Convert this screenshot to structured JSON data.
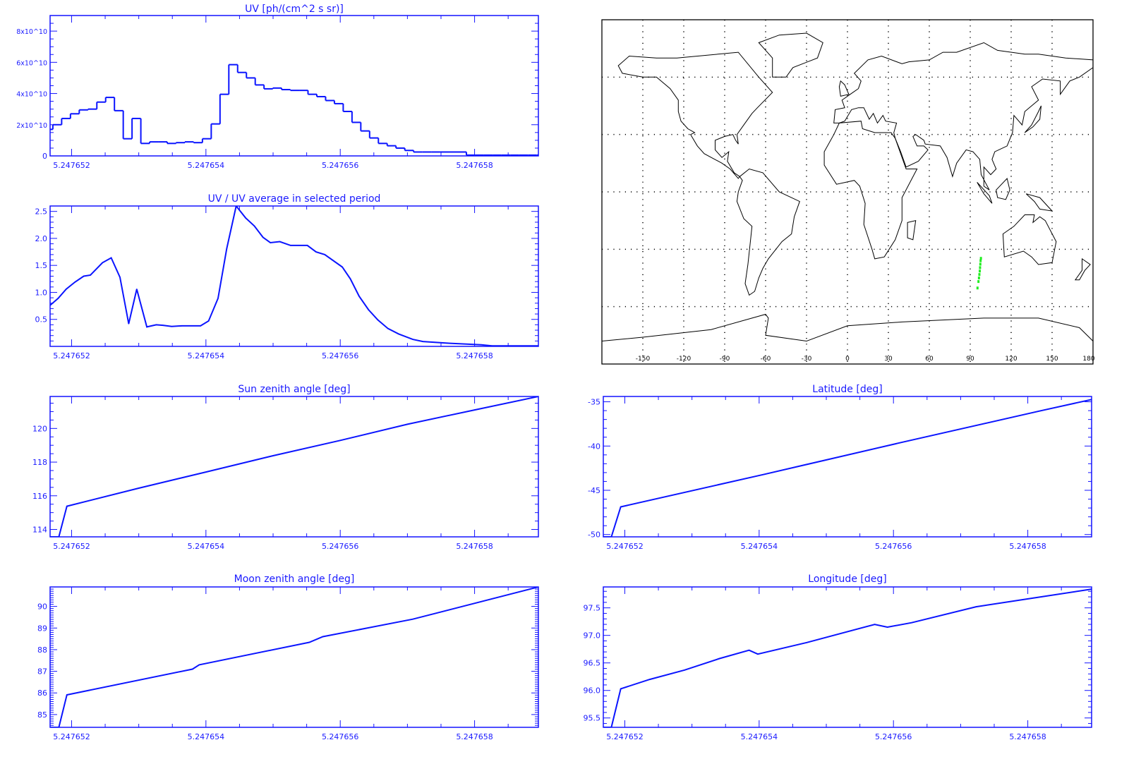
{
  "colors": {
    "axis": "#1414ff",
    "line": "#0a14ff",
    "track": "#22ee22",
    "coast": "#000000"
  },
  "chart_data": [
    {
      "key": "uv",
      "type": "bar",
      "style": "step",
      "title": "UV [ph/(cm^2 s sr)]",
      "xlim": [
        5.24765168,
        5.24765895
      ],
      "ylim": [
        0,
        90000000000.0
      ],
      "xticks": [
        5.247652,
        5.247654,
        5.247656,
        5.247658
      ],
      "xtick_labels": [
        "5.247652",
        "5.247654",
        "5.247656",
        "5.247658"
      ],
      "x_minor": 5e-07,
      "yticks": [
        0,
        20000000000.0,
        40000000000.0,
        60000000000.0,
        80000000000.0
      ],
      "ytick_labels": [
        "0",
        "2x10^10",
        "4x10^10",
        "6x10^10",
        "8x10^10"
      ],
      "y_minor": 5000000000.0,
      "bin_start": 5.24765159,
      "bin_width": 1.31e-07,
      "values": [
        17000000000.0,
        20000000000.0,
        24000000000.0,
        27000000000.0,
        29500000000.0,
        30000000000.0,
        34500000000.0,
        37500000000.0,
        29000000000.0,
        11000000000.0,
        24000000000.0,
        8000000000.0,
        9000000000.0,
        9000000000.0,
        8000000000.0,
        8500000000.0,
        9000000000.0,
        8500000000.0,
        11000000000.0,
        20500000000.0,
        39500000000.0,
        58500000000.0,
        53500000000.0,
        50000000000.0,
        45500000000.0,
        43000000000.0,
        43500000000.0,
        42500000000.0,
        42000000000.0,
        42000000000.0,
        39500000000.0,
        38000000000.0,
        35500000000.0,
        33500000000.0,
        28500000000.0,
        21500000000.0,
        16000000000.0,
        11500000000.0,
        8000000000.0,
        6500000000.0,
        5000000000.0,
        3500000000.0,
        2500000000.0,
        2500000000.0,
        2500000000.0,
        2500000000.0,
        2500000000.0,
        2500000000.0,
        500000000.0,
        500000000.0,
        500000000.0,
        500000000.0,
        500000000.0,
        500000000.0,
        500000000.0,
        500000000.0,
        500000000.0
      ]
    },
    {
      "key": "ratio",
      "type": "line",
      "title": "UV / UV average in selected period",
      "xlim": [
        5.24765168,
        5.24765895
      ],
      "ylim": [
        0,
        2.6
      ],
      "xticks": [
        5.247652,
        5.247654,
        5.247656,
        5.247658
      ],
      "xtick_labels": [
        "5.247652",
        "5.247654",
        "5.247656",
        "5.247658"
      ],
      "x_minor": 5e-07,
      "yticks": [
        0.5,
        1.0,
        1.5,
        2.0,
        2.5
      ],
      "ytick_labels": [
        "0.5",
        "1.0",
        "1.5",
        "2.0",
        "2.5"
      ],
      "y_minor": 0.1,
      "x": [
        5.24765168,
        5.2476518,
        5.24765192,
        5.24765205,
        5.24765218,
        5.24765228,
        5.24765246,
        5.24765259,
        5.24765272,
        5.24765285,
        5.24765297,
        5.24765312,
        5.24765326,
        5.24765336,
        5.24765349,
        5.24765364,
        5.24765392,
        5.24765404,
        5.24765418,
        5.24765431,
        5.24765445,
        5.24765459,
        5.24765472,
        5.24765485,
        5.24765496,
        5.2476551,
        5.24765526,
        5.24765551,
        5.24765564,
        5.24765577,
        5.24765603,
        5.24765615,
        5.24765628,
        5.24765642,
        5.24765656,
        5.24765671,
        5.24765687,
        5.24765708,
        5.24765723,
        5.24765759,
        5.2476581,
        5.24765826,
        5.24765895
      ],
      "y": [
        0.76,
        0.89,
        1.06,
        1.19,
        1.3,
        1.32,
        1.55,
        1.64,
        1.28,
        0.42,
        1.06,
        0.36,
        0.4,
        0.39,
        0.37,
        0.38,
        0.38,
        0.47,
        0.89,
        1.81,
        2.6,
        2.38,
        2.23,
        2.02,
        1.92,
        1.94,
        1.87,
        1.87,
        1.75,
        1.7,
        1.47,
        1.25,
        0.93,
        0.68,
        0.49,
        0.33,
        0.23,
        0.13,
        0.09,
        0.06,
        0.03,
        0.01,
        0.01
      ]
    },
    {
      "key": "sun",
      "type": "line",
      "title": "Sun zenith angle [deg]",
      "xlim": [
        5.24765168,
        5.24765895
      ],
      "ylim": [
        113.56,
        121.9
      ],
      "xticks": [
        5.247652,
        5.247654,
        5.247656,
        5.247658
      ],
      "xtick_labels": [
        "5.247652",
        "5.247654",
        "5.247656",
        "5.247658"
      ],
      "x_minor": 5e-07,
      "yticks": [
        114,
        116,
        118,
        120
      ],
      "ytick_labels": [
        "114",
        "116",
        "118",
        "120"
      ],
      "y_minor": 0.5,
      "x": [
        5.24765168,
        5.24765181,
        5.24765193,
        5.247653,
        5.247654,
        5.247655,
        5.247656,
        5.247657,
        5.247658,
        5.24765895
      ],
      "y": [
        113.56,
        113.56,
        115.38,
        116.45,
        117.41,
        118.38,
        119.29,
        120.25,
        121.1,
        121.9
      ]
    },
    {
      "key": "lat",
      "type": "line",
      "title": "Latitude [deg]",
      "xlim": [
        5.24765168,
        5.24765895
      ],
      "ylim": [
        -50.26,
        -34.4
      ],
      "xticks": [
        5.247652,
        5.247654,
        5.247656,
        5.247658
      ],
      "xtick_labels": [
        "5.247652",
        "5.247654",
        "5.247656",
        "5.247658"
      ],
      "x_minor": 5e-07,
      "yticks": [
        -50,
        -45,
        -40,
        -35
      ],
      "ytick_labels": [
        "-50",
        "-45",
        "-40",
        "-35"
      ],
      "y_minor": 1,
      "x": [
        5.24765168,
        5.2476518,
        5.24765194,
        5.24765408,
        5.24765614,
        5.24765819,
        5.24765895
      ],
      "y": [
        -50.26,
        -50.26,
        -46.87,
        -43.19,
        -39.56,
        -36.02,
        -34.74
      ]
    },
    {
      "key": "moon",
      "type": "line",
      "title": "Moon zenith angle [deg]",
      "xlim": [
        5.24765168,
        5.24765895
      ],
      "ylim": [
        84.41,
        90.9
      ],
      "xticks": [
        5.247652,
        5.247654,
        5.247656,
        5.247658
      ],
      "xtick_labels": [
        "5.247652",
        "5.247654",
        "5.247656",
        "5.247658"
      ],
      "x_minor": 5e-07,
      "yticks": [
        85,
        86,
        87,
        88,
        89,
        90
      ],
      "ytick_labels": [
        "85",
        "86",
        "87",
        "88",
        "89",
        "90"
      ],
      "y_minor": 0.1,
      "x": [
        5.24765168,
        5.24765181,
        5.24765193,
        5.2476538,
        5.2476539,
        5.24765554,
        5.24765574,
        5.24765708,
        5.24765895
      ],
      "y": [
        84.41,
        84.41,
        85.91,
        87.1,
        87.3,
        88.34,
        88.6,
        89.41,
        90.9
      ]
    },
    {
      "key": "lon",
      "type": "line",
      "title": "Longitude [deg]",
      "xlim": [
        5.24765168,
        5.24765895
      ],
      "ylim": [
        95.33,
        97.88
      ],
      "xticks": [
        5.247652,
        5.247654,
        5.247656,
        5.247658
      ],
      "xtick_labels": [
        "5.247652",
        "5.247654",
        "5.247656",
        "5.247658"
      ],
      "x_minor": 5e-07,
      "yticks": [
        95.5,
        96.0,
        96.5,
        97.0,
        97.5
      ],
      "ytick_labels": [
        "95.5",
        "96.0",
        "96.5",
        "97.0",
        "97.5"
      ],
      "y_minor": 0.1,
      "x": [
        5.24765168,
        5.2476518,
        5.24765194,
        5.24765237,
        5.24765289,
        5.24765341,
        5.24765385,
        5.24765398,
        5.24765471,
        5.24765572,
        5.24765591,
        5.24765627,
        5.24765723,
        5.24765809,
        5.24765895
      ],
      "y": [
        95.33,
        95.33,
        96.03,
        96.2,
        96.37,
        96.58,
        96.73,
        96.66,
        96.87,
        97.2,
        97.15,
        97.23,
        97.52,
        97.68,
        97.84
      ]
    }
  ],
  "map": {
    "lon_range": [
      -180,
      180
    ],
    "lat_range": [
      -90,
      90
    ],
    "lon_ticks": [
      -150,
      -120,
      -90,
      -60,
      -30,
      0,
      30,
      60,
      90,
      120,
      150,
      180
    ],
    "lon_tick_labels": [
      "-150",
      "-120",
      "-90",
      "-60",
      "-30",
      "0",
      "30",
      "60",
      "90",
      "120",
      "150",
      "180"
    ],
    "grid_lon": [
      -150,
      -120,
      -90,
      -60,
      -30,
      0,
      30,
      60,
      90,
      120,
      150
    ],
    "grid_lat": [
      -60,
      -30,
      0,
      30,
      60
    ],
    "track": [
      [
        95.33,
        -50.26
      ],
      [
        96.03,
        -46.87
      ],
      [
        96.4,
        -45
      ],
      [
        96.7,
        -43.2
      ],
      [
        97.0,
        -41.4
      ],
      [
        97.2,
        -39.6
      ],
      [
        97.4,
        -37.8
      ],
      [
        97.6,
        -36.0
      ],
      [
        97.84,
        -34.74
      ]
    ]
  }
}
